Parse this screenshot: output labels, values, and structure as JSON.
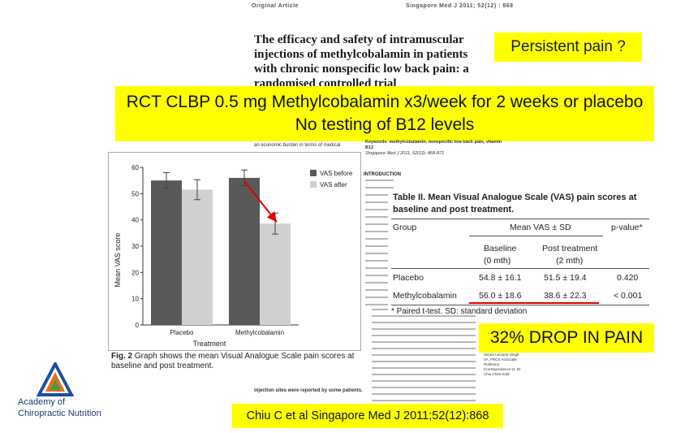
{
  "header": {
    "label": "Original Article",
    "journal": "Singapore Med J 2011; 52(12) : 868"
  },
  "article": {
    "title": "The efficacy and safety of intramuscular\ninjections of methylcobalamin in patients\nwith chronic nonspecific low back pain: a\nrandomised controlled trial",
    "keywords": "Keywords: methylcobalamin, nonspecific low back pain, vitamin B12",
    "ref_line": "Singapore Med J 2011; 52(12): 868-872",
    "intro_heading": "INTRODUCTION",
    "econ_line": "an economic burden in terms of medical",
    "bottom_line": "injection sites were reported by some patients."
  },
  "callouts": {
    "persistent": "Persistent pain ?",
    "rct_line1": "RCT CLBP 0.5 mg Methylcobalamin x3/week for 2 weeks or placebo",
    "rct_line2": "No testing of B12 levels",
    "drop": "32% DROP IN PAIN",
    "citation": "Chiu C et al Singapore Med J 2011;52(12):868"
  },
  "logo": {
    "line1": "Academy of",
    "line2": "Chiropractic Nutrition",
    "colors": [
      "#1e4fa0",
      "#e07020",
      "#3aa34a"
    ]
  },
  "figure_caption": {
    "label": "Fig. 2",
    "text": " Graph shows the mean Visual Analogue Scale pain scores at baseline and post treatment."
  },
  "table": {
    "title": "Table II. Mean Visual Analogue Scale (VAS) pain scores at baseline and post treatment.",
    "col_group": "Group",
    "col_mean": "Mean VAS ± SD",
    "col_p": "p-value*",
    "sub_baseline": "Baseline",
    "sub_baseline2": "(0 mth)",
    "sub_post": "Post treatment",
    "sub_post2": "(2 mth)",
    "rows": [
      {
        "group": "Placebo",
        "baseline": "54.8 ± 16.1",
        "post": "51.5 ± 19.4",
        "p": "0.420"
      },
      {
        "group": "Methylcobalamin",
        "baseline": "56.0 ± 18.6",
        "post": "38.6 ± 22.3",
        "p": "< 0.001"
      }
    ],
    "footnote": "* Paired t-test. SD: standard deviation"
  },
  "aside": {
    "text": "Low TH, MBBS, MS Senior Lecturer Singh VA, FRCS Associate Professor Correspondence to: Dr Chiu Chee Kidd"
  },
  "chart_data": {
    "type": "bar",
    "xlabel": "Treatment",
    "ylabel": "Mean VAS score",
    "ylim": [
      0,
      60
    ],
    "yticks": [
      0,
      10,
      20,
      30,
      40,
      50,
      60
    ],
    "categories": [
      "Placebo",
      "Methylcobalamin"
    ],
    "series": [
      {
        "name": "VAS before",
        "color": "#595959",
        "values": [
          55,
          56
        ],
        "errors": [
          3,
          3
        ]
      },
      {
        "name": "VAS after",
        "color": "#d0d0d0",
        "values": [
          51.5,
          38.6
        ],
        "errors": [
          3.8,
          4
        ]
      }
    ],
    "legend_position": "top-right",
    "arrow_color": "#e00000"
  }
}
